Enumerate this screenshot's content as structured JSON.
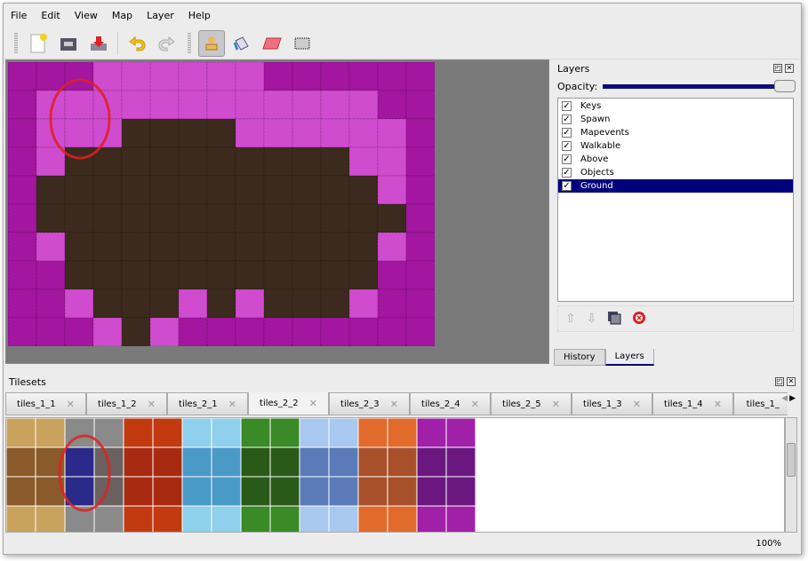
{
  "menu": [
    "File",
    "Edit",
    "View",
    "Map",
    "Layer",
    "Help"
  ],
  "toolbar": {
    "tools": [
      "new-icon",
      "open-icon",
      "save-icon",
      "undo-icon",
      "redo-icon",
      "stamp-brush-icon",
      "bucket-fill-icon",
      "eraser-icon",
      "rectangle-select-icon"
    ],
    "active": "stamp-brush-icon"
  },
  "map": {
    "legend": {
      "m": "#a3169f",
      "p": "#d04ccf",
      "d": "#3d2a1e"
    },
    "rows": [
      "mmmppppppmmmmmm",
      "mppppppppppppmm",
      "mpppddddppppppm",
      "mpddddddddddppm",
      "mddddddddddddpm",
      "mdddddddddddddm",
      "mpdddddddddddpm",
      "mmdddddddddddmm",
      "mmpdddpdpdddpmm",
      "mmmpdpmmmmmmmmm"
    ]
  },
  "layers_panel": {
    "title": "Layers",
    "opacity_label": "Opacity:",
    "opacity": 1.0,
    "items": [
      {
        "name": "Keys",
        "visible": true
      },
      {
        "name": "Spawn",
        "visible": true
      },
      {
        "name": "Mapevents",
        "visible": true
      },
      {
        "name": "Walkable",
        "visible": true
      },
      {
        "name": "Above",
        "visible": true
      },
      {
        "name": "Objects",
        "visible": true
      },
      {
        "name": "Ground",
        "visible": true,
        "selected": true
      }
    ],
    "tabs": [
      "History",
      "Layers"
    ],
    "active_tab": "Layers"
  },
  "tilesets": {
    "title": "Tilesets",
    "tabs": [
      "tiles_1_1",
      "tiles_1_2",
      "tiles_2_1",
      "tiles_2_2",
      "tiles_2_3",
      "tiles_2_4",
      "tiles_2_5",
      "tiles_1_3",
      "tiles_1_4",
      "tiles_1_"
    ],
    "active": "tiles_2_2",
    "palette": [
      [
        "#c9a25e",
        "#8a8a8a",
        "#c23a10",
        "#8fd0ec",
        "#3b8a28",
        "#a8c8f0",
        "#e26a2a",
        "#a020a8"
      ],
      [
        "#8a5a2a",
        "#6a6060",
        "#a82a10",
        "#4a9ac8",
        "#2a5a18",
        "#5a7ab8",
        "#a8502a",
        "#6a1880"
      ]
    ],
    "selected_color": "#2a2a8a"
  },
  "status": {
    "zoom": "100%"
  }
}
